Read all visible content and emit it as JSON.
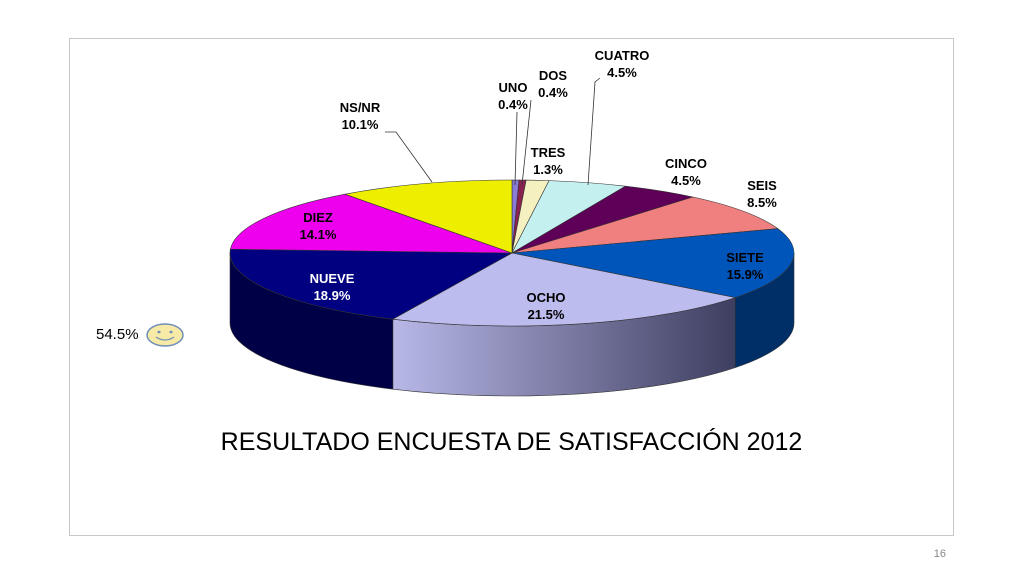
{
  "chart_data": {
    "type": "pie",
    "title": "RESULTADO ENCUESTA DE SATISFACCIÓN 2012",
    "slices": [
      {
        "label": "UNO",
        "value": 0.4,
        "display": "0.4%",
        "color": "#8a7bd6"
      },
      {
        "label": "DOS",
        "value": 0.4,
        "display": "0.4%",
        "color": "#8a2250"
      },
      {
        "label": "TRES",
        "value": 1.3,
        "display": "1.3%",
        "color": "#f5f0c0"
      },
      {
        "label": "CUATRO",
        "value": 4.5,
        "display": "4.5%",
        "color": "#c4f0f0"
      },
      {
        "label": "CINCO",
        "value": 4.5,
        "display": "4.5%",
        "color": "#5e0057"
      },
      {
        "label": "SEIS",
        "value": 8.5,
        "display": "8.5%",
        "color": "#f08080"
      },
      {
        "label": "SIETE",
        "value": 15.9,
        "display": "15.9%",
        "color": "#0055bb"
      },
      {
        "label": "OCHO",
        "value": 21.5,
        "display": "21.5%",
        "color": "#bcbcee"
      },
      {
        "label": "NUEVE",
        "value": 18.9,
        "display": "18.9%",
        "color": "#000080"
      },
      {
        "label": "DIEZ",
        "value": 14.1,
        "display": "14.1%",
        "color": "#ee00ee"
      },
      {
        "label": "NS/NR",
        "value": 10.1,
        "display": "10.1%",
        "color": "#eeee00"
      }
    ]
  },
  "aside": {
    "percent": "54.5%",
    "icon": "smiley-face-icon"
  },
  "page_number": "16"
}
